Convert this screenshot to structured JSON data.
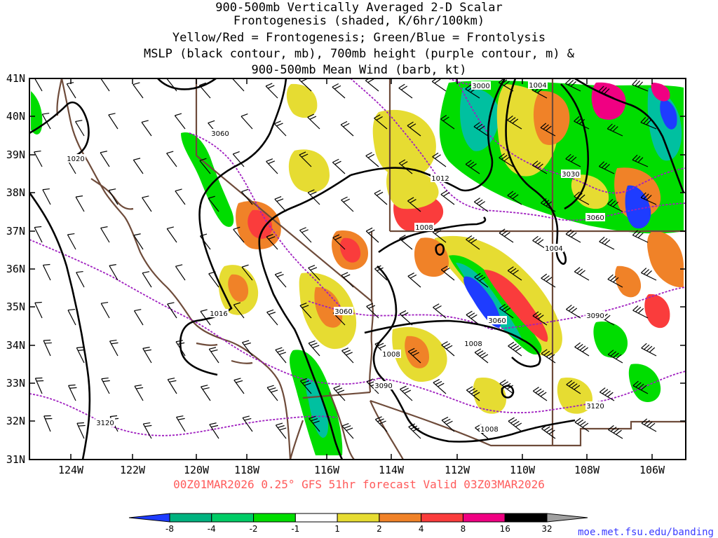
{
  "title": {
    "lines": [
      "900-500mb Vertically Averaged 2-D Scalar",
      "Frontogenesis (shaded, K/6hr/100km)",
      "Yellow/Red = Frontogenesis;  Green/Blue = Frontolysis",
      "MSLP (black contour, mb), 700mb height (purple contour, m) &",
      "900-500mb Mean Wind (barb, kt)"
    ]
  },
  "axes": {
    "lat_labels": [
      "41N",
      "40N",
      "39N",
      "38N",
      "37N",
      "36N",
      "35N",
      "34N",
      "33N",
      "32N",
      "31N"
    ],
    "lon_labels": [
      "124W",
      "122W",
      "120W",
      "118W",
      "116W",
      "114W",
      "112W",
      "110W",
      "108W",
      "106W"
    ],
    "lat_range": [
      31,
      41
    ],
    "lon_range": [
      -125,
      -105
    ]
  },
  "valid_line": "00Z01MAR2026 0.25° GFS 51hr forecast Valid 03Z03MAR2026",
  "colorbar": {
    "labels": [
      "-8",
      "-4",
      "-2",
      "-1",
      "1",
      "2",
      "4",
      "8",
      "16",
      "32"
    ],
    "colors": [
      "#1e3cff",
      "#00b27f",
      "#00cc66",
      "#00dd00",
      "#ffffff",
      "#e6dc32",
      "#f08228",
      "#fa3c3c",
      "#f00082",
      "#000000",
      "#a0a0a0"
    ]
  },
  "mslp_contour_labels": [
    "1020",
    "1016",
    "1012",
    "1008",
    "1008",
    "1008",
    "1008",
    "1004",
    "1004"
  ],
  "height_contour_labels": [
    "3060",
    "3060",
    "3060",
    "3060",
    "3000",
    "3030",
    "3090",
    "3090",
    "3120",
    "3120"
  ],
  "colors": {
    "mslp": "#000000",
    "height": "#a020c0",
    "boundary": "#6e4b3a",
    "valid_text": "#ff5a5a",
    "link": "#3a3aff"
  },
  "source": "moe.met.fsu.edu/banding"
}
